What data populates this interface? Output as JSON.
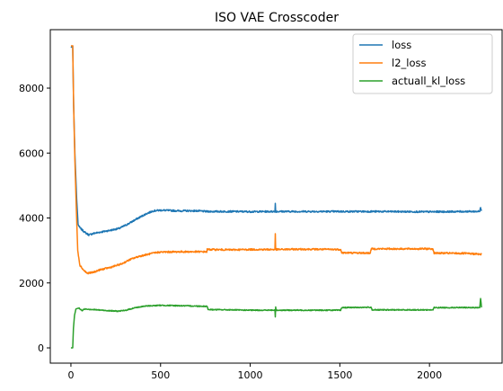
{
  "chart_data": {
    "type": "line",
    "title": "ISO VAE Crosscoder",
    "xlabel": "",
    "ylabel": "",
    "xlim": [
      -115,
      2405
    ],
    "ylim": [
      -470,
      9800
    ],
    "xticks": [
      0,
      500,
      1000,
      1500,
      2000
    ],
    "yticks": [
      0,
      2000,
      4000,
      6000,
      8000
    ],
    "grid": false,
    "legend_position": "top-right",
    "series": [
      {
        "name": "loss",
        "color": "#1f77b4",
        "noise": 25,
        "points": [
          [
            0,
            9250
          ],
          [
            10,
            9300
          ],
          [
            15,
            7500
          ],
          [
            22,
            6000
          ],
          [
            32,
            4600
          ],
          [
            40,
            3800
          ],
          [
            50,
            3700
          ],
          [
            65,
            3620
          ],
          [
            80,
            3550
          ],
          [
            100,
            3480
          ],
          [
            130,
            3530
          ],
          [
            170,
            3570
          ],
          [
            220,
            3620
          ],
          [
            270,
            3680
          ],
          [
            320,
            3820
          ],
          [
            370,
            3980
          ],
          [
            420,
            4130
          ],
          [
            460,
            4220
          ],
          [
            500,
            4240
          ],
          [
            600,
            4220
          ],
          [
            700,
            4220
          ],
          [
            760,
            4200
          ],
          [
            900,
            4200
          ],
          [
            1000,
            4195
          ],
          [
            1138,
            4200
          ],
          [
            1140,
            4450
          ],
          [
            1142,
            4200
          ],
          [
            1300,
            4200
          ],
          [
            1500,
            4200
          ],
          [
            1700,
            4200
          ],
          [
            2000,
            4190
          ],
          [
            2200,
            4200
          ],
          [
            2280,
            4200
          ],
          [
            2285,
            4320
          ],
          [
            2290,
            4240
          ]
        ]
      },
      {
        "name": "l2_loss",
        "color": "#ff7f0e",
        "noise": 25,
        "points": [
          [
            0,
            9300
          ],
          [
            10,
            9300
          ],
          [
            15,
            7500
          ],
          [
            22,
            5800
          ],
          [
            30,
            4300
          ],
          [
            38,
            3000
          ],
          [
            50,
            2550
          ],
          [
            70,
            2400
          ],
          [
            90,
            2300
          ],
          [
            120,
            2320
          ],
          [
            160,
            2400
          ],
          [
            220,
            2480
          ],
          [
            280,
            2580
          ],
          [
            330,
            2720
          ],
          [
            380,
            2820
          ],
          [
            430,
            2880
          ],
          [
            470,
            2930
          ],
          [
            500,
            2950
          ],
          [
            600,
            2960
          ],
          [
            758,
            2960
          ],
          [
            760,
            3030
          ],
          [
            900,
            3020
          ],
          [
            1000,
            3030
          ],
          [
            1138,
            3030
          ],
          [
            1140,
            3500
          ],
          [
            1142,
            3030
          ],
          [
            1300,
            3040
          ],
          [
            1505,
            3030
          ],
          [
            1510,
            2930
          ],
          [
            1670,
            2920
          ],
          [
            1675,
            3050
          ],
          [
            2020,
            3050
          ],
          [
            2025,
            2920
          ],
          [
            2200,
            2910
          ],
          [
            2290,
            2880
          ]
        ]
      },
      {
        "name": "actuall_kl_loss",
        "color": "#2ca02c",
        "noise": 15,
        "points": [
          [
            0,
            0
          ],
          [
            10,
            0
          ],
          [
            14,
            600
          ],
          [
            20,
            1000
          ],
          [
            28,
            1200
          ],
          [
            45,
            1230
          ],
          [
            60,
            1150
          ],
          [
            80,
            1200
          ],
          [
            120,
            1180
          ],
          [
            200,
            1150
          ],
          [
            260,
            1130
          ],
          [
            300,
            1150
          ],
          [
            360,
            1240
          ],
          [
            420,
            1290
          ],
          [
            500,
            1310
          ],
          [
            600,
            1300
          ],
          [
            760,
            1280
          ],
          [
            765,
            1180
          ],
          [
            900,
            1170
          ],
          [
            1000,
            1160
          ],
          [
            1138,
            1160
          ],
          [
            1140,
            950
          ],
          [
            1142,
            1260
          ],
          [
            1145,
            1160
          ],
          [
            1300,
            1160
          ],
          [
            1505,
            1160
          ],
          [
            1510,
            1240
          ],
          [
            1675,
            1250
          ],
          [
            1680,
            1170
          ],
          [
            2020,
            1170
          ],
          [
            2025,
            1240
          ],
          [
            2280,
            1240
          ],
          [
            2285,
            1520
          ],
          [
            2290,
            1250
          ]
        ]
      }
    ]
  }
}
